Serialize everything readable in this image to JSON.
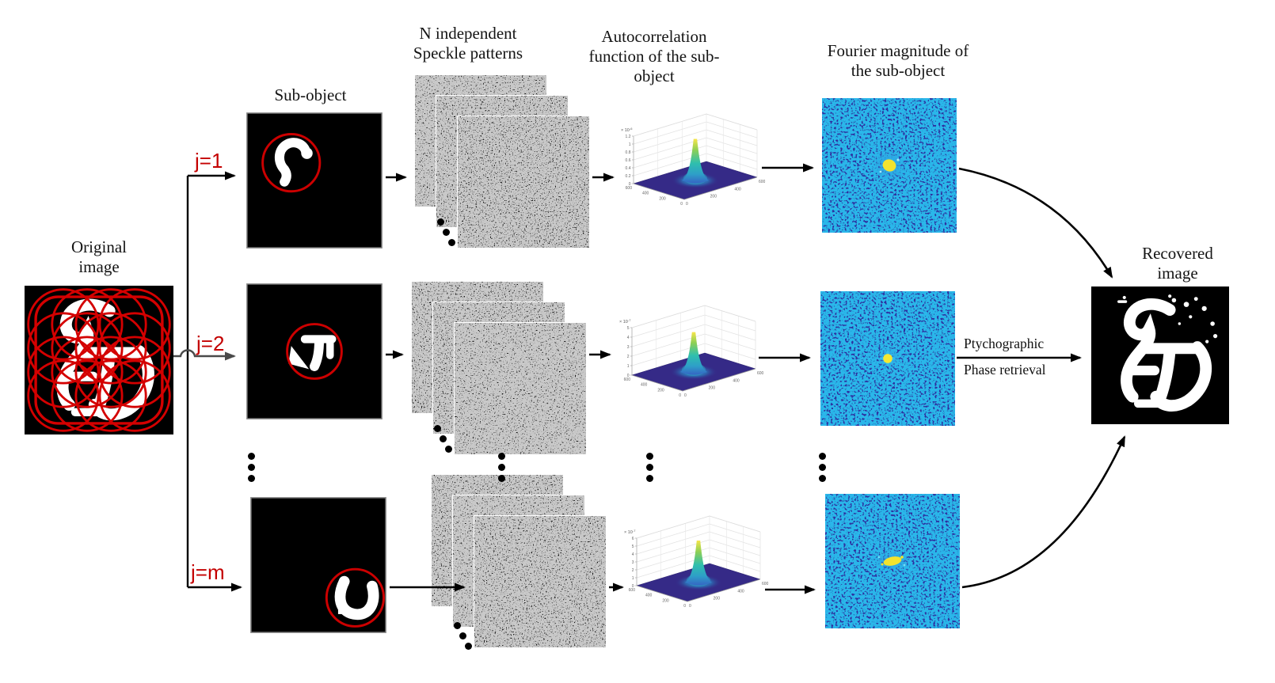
{
  "figure": {
    "headers": {
      "original": [
        "Original",
        "image"
      ],
      "sub_object": [
        "Sub-object"
      ],
      "speckle": [
        "N independent",
        "Speckle patterns"
      ],
      "autocorr": [
        "Autocorrelation",
        "function of the sub-",
        "object"
      ],
      "fourier": [
        "Fourier magnitude of",
        "the sub-object"
      ],
      "recovered": [
        "Recovered",
        "image"
      ]
    },
    "branches": {
      "j1": "j=1",
      "j2": "j=2",
      "jm": "j=m"
    },
    "process": {
      "line1": "Ptychographic",
      "line2": "Phase retrieval"
    },
    "colors": {
      "branch_label": "#c40000",
      "scan_circle": "#cc0000",
      "arrow": "#000000",
      "fourier_background": "#2e2ea2",
      "fourier_center": "#f2e32e",
      "surface_base": "#352a87",
      "surface_peak_tip": "#f7e54a"
    }
  },
  "chart_data": [
    {
      "type": "surface3d",
      "row": "j=1",
      "title": "Autocorrelation function of the sub-object (j=1)",
      "z_scale_base": "× 10",
      "z_scale_exp": "-6",
      "zticks": [
        "1.2",
        "1",
        "0.8",
        "0.6",
        "0.4",
        "0.2",
        "0"
      ],
      "zmax": 1.2,
      "peak_value": 1.05,
      "left_axis_ticks": [
        "600",
        "400",
        "200",
        "0"
      ],
      "right_axis_ticks": [
        "0",
        "200",
        "400",
        "600"
      ],
      "base_color": "#352a87",
      "peak_colors": [
        "#f7e54a",
        "#8ed054",
        "#2fbfae",
        "#2e9ec8",
        "#3566c4"
      ]
    },
    {
      "type": "surface3d",
      "row": "j=2",
      "title": "Autocorrelation function of the sub-object (j=2)",
      "z_scale_base": "× 10",
      "z_scale_exp": "-7",
      "zticks": [
        "5",
        "4",
        "3",
        "2",
        "1",
        "0"
      ],
      "zmax": 5,
      "peak_value": 4.2,
      "left_axis_ticks": [
        "600",
        "400",
        "200",
        "0"
      ],
      "right_axis_ticks": [
        "0",
        "200",
        "400",
        "600"
      ],
      "base_color": "#352a87",
      "peak_colors": [
        "#f7e54a",
        "#8ed054",
        "#2fbfae",
        "#2e9ec8",
        "#3566c4"
      ]
    },
    {
      "type": "surface3d",
      "row": "j=m",
      "title": "Autocorrelation function of the sub-object (j=m)",
      "z_scale_base": "× 10",
      "z_scale_exp": "-7",
      "zticks": [
        "6",
        "5",
        "4",
        "3",
        "2",
        "1",
        "0"
      ],
      "zmax": 6,
      "peak_value": 5.3,
      "left_axis_ticks": [
        "600",
        "400",
        "200",
        "0"
      ],
      "right_axis_ticks": [
        "0",
        "200",
        "400",
        "600"
      ],
      "base_color": "#352a87",
      "peak_colors": [
        "#f7e54a",
        "#8ed054",
        "#2fbfae",
        "#2e9ec8",
        "#3566c4"
      ]
    }
  ]
}
